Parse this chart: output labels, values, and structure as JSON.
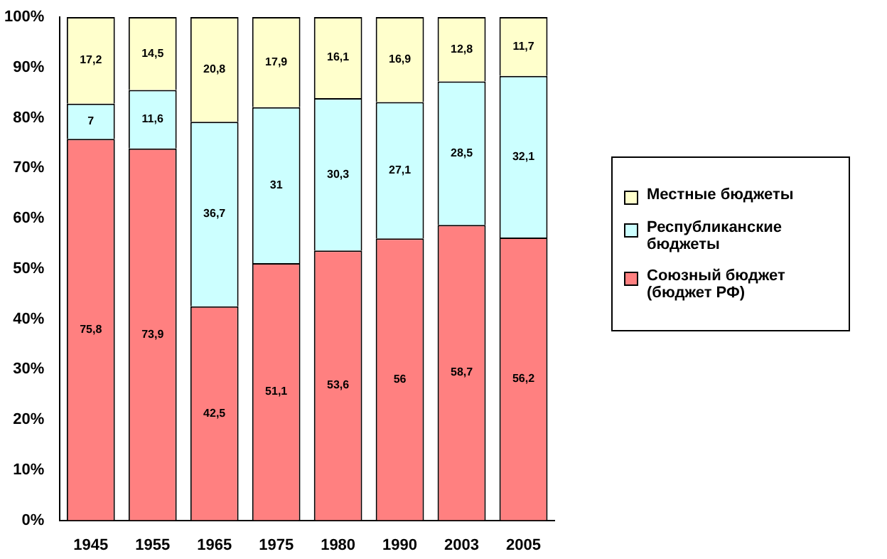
{
  "chart_data": {
    "type": "bar",
    "stacked": true,
    "categories": [
      "1945",
      "1955",
      "1965",
      "1975",
      "1980",
      "1990",
      "2003",
      "2005"
    ],
    "series": [
      {
        "name": "Союзный бюджет (бюджет РФ)",
        "color": "#ff8080",
        "values": [
          75.8,
          73.9,
          42.5,
          51.1,
          53.6,
          56,
          58.7,
          56.2
        ],
        "value_labels": [
          "75,8",
          "73,9",
          "42,5",
          "51,1",
          "53,6",
          "56",
          "58,7",
          "56,2"
        ]
      },
      {
        "name": "Республиканские бюджеты",
        "color": "#ccffff",
        "values": [
          7,
          11.6,
          36.7,
          31,
          30.3,
          27.1,
          28.5,
          32.1
        ],
        "value_labels": [
          "7",
          "11,6",
          "36,7",
          "31",
          "30,3",
          "27,1",
          "28,5",
          "32,1"
        ]
      },
      {
        "name": "Местные бюджеты",
        "color": "#ffffcc",
        "values": [
          17.2,
          14.5,
          20.8,
          17.9,
          16.1,
          16.9,
          12.8,
          11.7
        ],
        "value_labels": [
          "17,2",
          "14,5",
          "20,8",
          "17,9",
          "16,1",
          "16,9",
          "12,8",
          "11,7"
        ]
      }
    ],
    "ylim": [
      0,
      100
    ],
    "yticks": [
      {
        "value": 0,
        "label": "0%"
      },
      {
        "value": 10,
        "label": "10%"
      },
      {
        "value": 20,
        "label": "20%"
      },
      {
        "value": 30,
        "label": "30%"
      },
      {
        "value": 40,
        "label": "40%"
      },
      {
        "value": 50,
        "label": "50%"
      },
      {
        "value": 60,
        "label": "60%"
      },
      {
        "value": 70,
        "label": "70%"
      },
      {
        "value": 80,
        "label": "80%"
      },
      {
        "value": 90,
        "label": "90%"
      },
      {
        "value": 100,
        "label": "100%"
      }
    ],
    "grid": false,
    "legend": "right"
  }
}
